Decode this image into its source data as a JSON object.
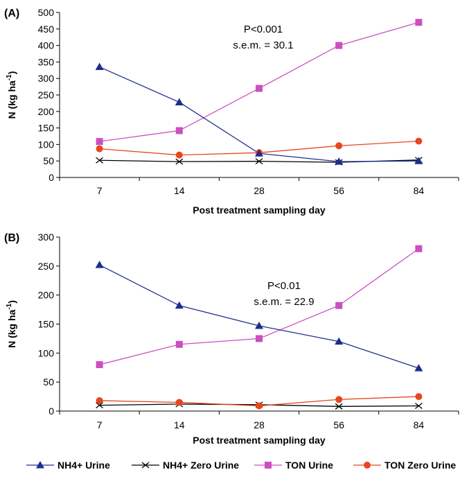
{
  "chart_data": [
    {
      "panel_label": "(A)",
      "type": "line",
      "categories": [
        "7",
        "14",
        "28",
        "56",
        "84"
      ],
      "xlabel": "Post treatment sampling day",
      "ylabel": "N (kg ha",
      "ylabel_sup": "-1",
      "ylabel_close": ")",
      "ylim": [
        0,
        500
      ],
      "yticks": [
        0,
        50,
        100,
        150,
        200,
        250,
        300,
        350,
        400,
        450,
        500
      ],
      "annotation": [
        "P<0.001",
        "s.e.m. = 30.1"
      ],
      "series": [
        {
          "name": "NH4+ Urine",
          "values": [
            335,
            228,
            73,
            48,
            50
          ]
        },
        {
          "name": "NH4+ Zero Urine",
          "values": [
            52,
            48,
            49,
            46,
            53
          ]
        },
        {
          "name": "TON Urine",
          "values": [
            109,
            142,
            270,
            400,
            470
          ]
        },
        {
          "name": "TON Zero Urine",
          "values": [
            87,
            68,
            75,
            96,
            110
          ]
        }
      ]
    },
    {
      "panel_label": "(B)",
      "type": "line",
      "categories": [
        "7",
        "14",
        "28",
        "56",
        "84"
      ],
      "xlabel": "Post treatment sampling day",
      "ylabel": "N (kg ha",
      "ylabel_sup": "-1",
      "ylabel_close": ")",
      "ylim": [
        0,
        300
      ],
      "yticks": [
        0,
        50,
        100,
        150,
        200,
        250,
        300
      ],
      "annotation": [
        "P<0.01",
        "s.e.m. = 22.9"
      ],
      "series": [
        {
          "name": "NH4+ Urine",
          "values": [
            252,
            182,
            147,
            120,
            74
          ]
        },
        {
          "name": "NH4+ Zero Urine",
          "values": [
            10,
            12,
            11,
            8,
            9
          ]
        },
        {
          "name": "TON Urine",
          "values": [
            80,
            115,
            125,
            182,
            280
          ]
        },
        {
          "name": "TON Zero Urine",
          "values": [
            18,
            15,
            9,
            20,
            25
          ]
        }
      ]
    }
  ],
  "legend": [
    {
      "name": "NH4+ Urine",
      "color": "#1f2d8c",
      "marker": "triangle"
    },
    {
      "name": "NH4+ Zero Urine",
      "color": "#000000",
      "marker": "x"
    },
    {
      "name": "TON Urine",
      "color": "#cc4fc0",
      "marker": "square"
    },
    {
      "name": "TON Zero Urine",
      "color": "#e8461e",
      "marker": "circle"
    }
  ],
  "colors": {
    "nh4_urine": "#1f2d8c",
    "nh4_zero": "#000000",
    "ton_urine": "#cc4fc0",
    "ton_zero": "#e8461e"
  }
}
